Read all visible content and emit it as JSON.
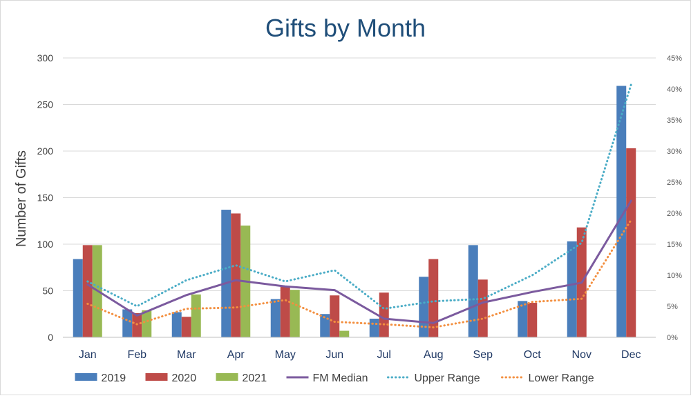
{
  "chart_data": {
    "type": "bar",
    "title": "Gifts by Month",
    "ylabel": "Number of Gifts",
    "xlabel": "",
    "categories": [
      "Jan",
      "Feb",
      "Mar",
      "Apr",
      "May",
      "Jun",
      "Jul",
      "Aug",
      "Sep",
      "Oct",
      "Nov",
      "Dec"
    ],
    "ylim": [
      0,
      300
    ],
    "yticks": [
      0,
      50,
      100,
      150,
      200,
      250,
      300
    ],
    "y2lim": [
      0,
      45
    ],
    "y2ticks": [
      "0%",
      "5%",
      "10%",
      "15%",
      "20%",
      "25%",
      "30%",
      "35%",
      "40%",
      "45%"
    ],
    "grid": "horizontal",
    "legend_position": "bottom",
    "bar_series": [
      {
        "name": "2019",
        "color": "#4a7ebb",
        "values": [
          84,
          30,
          27,
          137,
          41,
          25,
          20,
          65,
          99,
          39,
          103,
          270
        ]
      },
      {
        "name": "2020",
        "color": "#be4b48",
        "values": [
          99,
          26,
          22,
          133,
          55,
          45,
          48,
          84,
          62,
          37,
          118,
          203
        ]
      },
      {
        "name": "2021",
        "color": "#98b954",
        "values": [
          99,
          29,
          46,
          120,
          51,
          7,
          null,
          null,
          null,
          null,
          null,
          null
        ]
      }
    ],
    "line_series": [
      {
        "name": "FM Median",
        "axis": "secondary",
        "style": "solid",
        "color": "#7b5a9e",
        "values": [
          8.5,
          3.5,
          6.8,
          9.2,
          8.2,
          7.6,
          3.0,
          2.3,
          5.6,
          7.3,
          8.8,
          22.0
        ]
      },
      {
        "name": "Upper Range",
        "axis": "secondary",
        "style": "dotted",
        "color": "#4aacc6",
        "values": [
          9.0,
          5.0,
          9.2,
          11.6,
          9.0,
          10.8,
          4.6,
          5.8,
          6.2,
          10.0,
          15.2,
          40.7
        ]
      },
      {
        "name": "Lower Range",
        "axis": "secondary",
        "style": "dotted",
        "color": "#f38f3f",
        "values": [
          5.4,
          2.1,
          4.6,
          4.8,
          6.0,
          2.5,
          2.1,
          1.6,
          3.0,
          5.7,
          6.2,
          18.9
        ]
      }
    ]
  }
}
